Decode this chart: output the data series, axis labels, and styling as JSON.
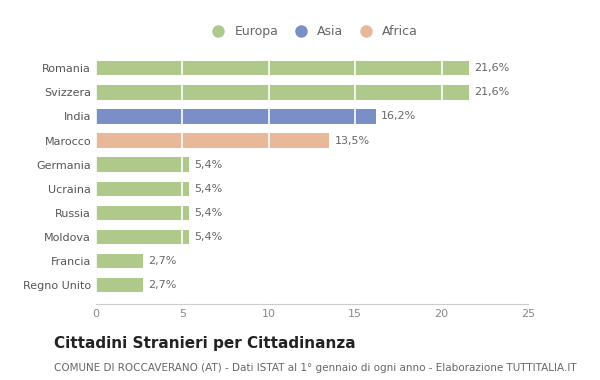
{
  "categories": [
    "Romania",
    "Svizzera",
    "India",
    "Marocco",
    "Germania",
    "Ucraina",
    "Russia",
    "Moldova",
    "Francia",
    "Regno Unito"
  ],
  "values": [
    21.6,
    21.6,
    16.2,
    13.5,
    5.4,
    5.4,
    5.4,
    5.4,
    2.7,
    2.7
  ],
  "labels": [
    "21,6%",
    "21,6%",
    "16,2%",
    "13,5%",
    "5,4%",
    "5,4%",
    "5,4%",
    "5,4%",
    "2,7%",
    "2,7%"
  ],
  "colors": [
    "#aec98a",
    "#aec98a",
    "#7b8fc7",
    "#e8b898",
    "#aec98a",
    "#aec98a",
    "#aec98a",
    "#aec98a",
    "#aec98a",
    "#aec98a"
  ],
  "legend": [
    {
      "label": "Europa",
      "color": "#aec98a"
    },
    {
      "label": "Asia",
      "color": "#7b8fc7"
    },
    {
      "label": "Africa",
      "color": "#e8b898"
    }
  ],
  "xlim": [
    0,
    25
  ],
  "xticks": [
    0,
    5,
    10,
    15,
    20,
    25
  ],
  "title": "Cittadini Stranieri per Cittadinanza",
  "subtitle": "COMUNE DI ROCCAVERANO (AT) - Dati ISTAT al 1° gennaio di ogni anno - Elaborazione TUTTITALIA.IT",
  "background_color": "#ffffff",
  "bar_height": 0.6,
  "title_fontsize": 11,
  "subtitle_fontsize": 7.5,
  "label_fontsize": 8,
  "tick_fontsize": 8,
  "legend_fontsize": 9
}
